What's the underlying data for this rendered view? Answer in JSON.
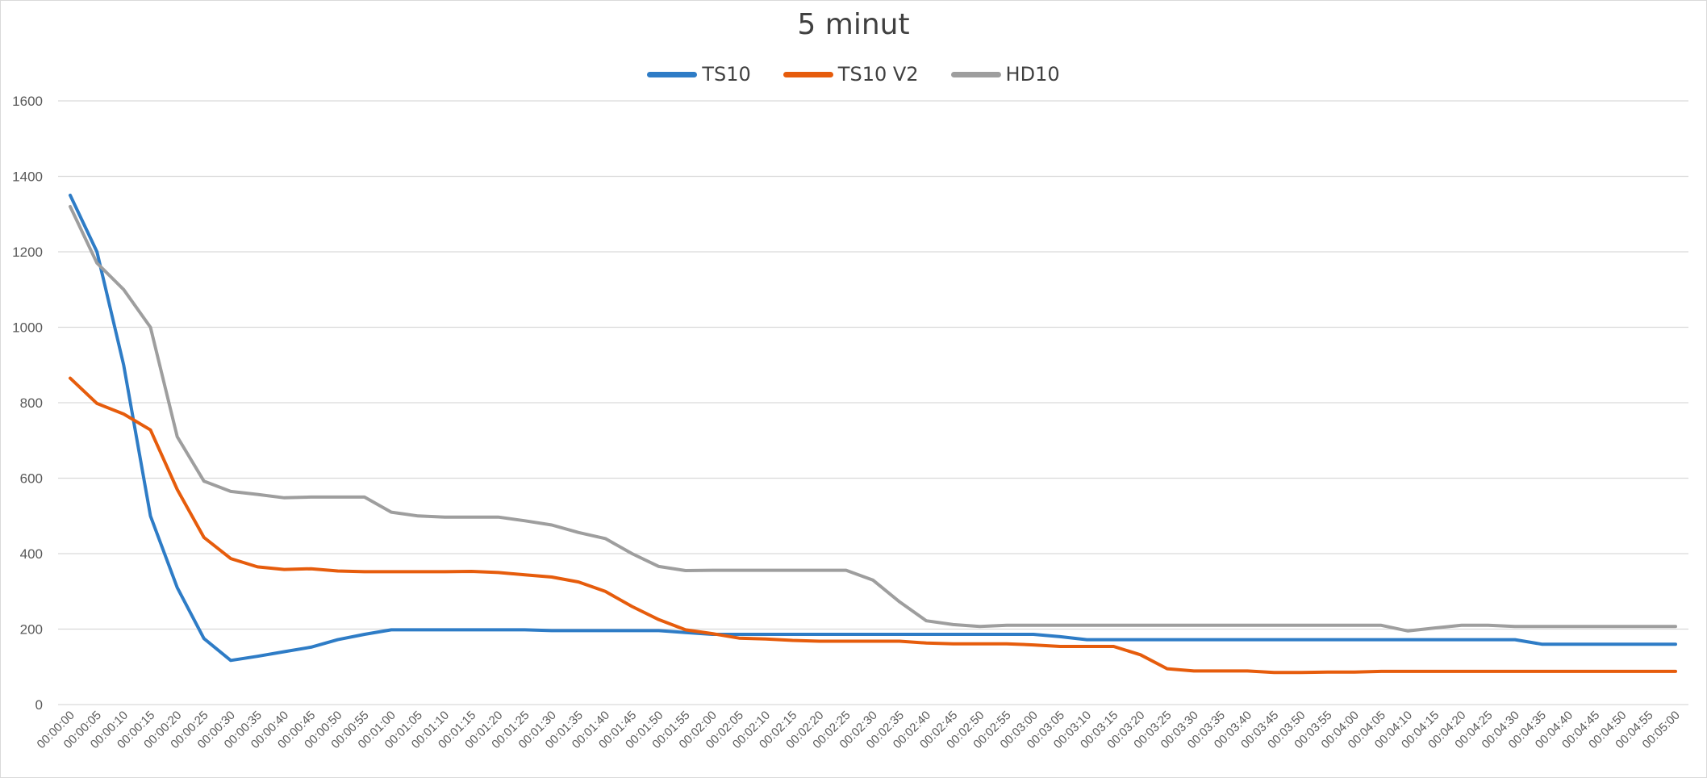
{
  "chart_data": {
    "type": "line",
    "title": "5 minut",
    "xlabel": "",
    "ylabel": "",
    "ylim": [
      0,
      1600
    ],
    "yticks": [
      0,
      200,
      400,
      600,
      800,
      1000,
      1200,
      1400,
      1600
    ],
    "grid": true,
    "legend_position": "top",
    "categories": [
      "00:00:00",
      "00:00:05",
      "00:00:10",
      "00:00:15",
      "00:00:20",
      "00:00:25",
      "00:00:30",
      "00:00:35",
      "00:00:40",
      "00:00:45",
      "00:00:50",
      "00:00:55",
      "00:01:00",
      "00:01:05",
      "00:01:10",
      "00:01:15",
      "00:01:20",
      "00:01:25",
      "00:01:30",
      "00:01:35",
      "00:01:40",
      "00:01:45",
      "00:01:50",
      "00:01:55",
      "00:02:00",
      "00:02:05",
      "00:02:10",
      "00:02:15",
      "00:02:20",
      "00:02:25",
      "00:02:30",
      "00:02:35",
      "00:02:40",
      "00:02:45",
      "00:02:50",
      "00:02:55",
      "00:03:00",
      "00:03:05",
      "00:03:10",
      "00:03:15",
      "00:03:20",
      "00:03:25",
      "00:03:30",
      "00:03:35",
      "00:03:40",
      "00:03:45",
      "00:03:50",
      "00:03:55",
      "00:04:00",
      "00:04:05",
      "00:04:10",
      "00:04:15",
      "00:04:20",
      "00:04:25",
      "00:04:30",
      "00:04:35",
      "00:04:40",
      "00:04:45",
      "00:04:50",
      "00:04:55",
      "00:05:00"
    ],
    "series": [
      {
        "name": "TS10",
        "color": "#2e7cc6",
        "values": [
          1350,
          1200,
          900,
          500,
          310,
          175,
          117,
          128,
          140,
          152,
          172,
          186,
          198,
          198,
          198,
          198,
          198,
          198,
          196,
          196,
          196,
          196,
          196,
          191,
          186,
          186,
          186,
          186,
          186,
          186,
          186,
          186,
          186,
          186,
          186,
          186,
          186,
          180,
          172,
          172,
          172,
          172,
          172,
          172,
          172,
          172,
          172,
          172,
          172,
          172,
          172,
          172,
          172,
          172,
          172,
          160,
          160,
          160,
          160,
          160,
          160
        ]
      },
      {
        "name": "TS10 V2",
        "color": "#e65c0c",
        "values": [
          865,
          798,
          770,
          728,
          570,
          443,
          387,
          365,
          358,
          360,
          354,
          352,
          352,
          352,
          352,
          353,
          350,
          344,
          338,
          325,
          300,
          260,
          225,
          198,
          188,
          176,
          174,
          170,
          168,
          168,
          168,
          168,
          163,
          161,
          161,
          161,
          158,
          154,
          154,
          154,
          132,
          95,
          89,
          89,
          89,
          85,
          85,
          86,
          86,
          88,
          88,
          88,
          88,
          88,
          88,
          88,
          88,
          88,
          88,
          88,
          88
        ]
      },
      {
        "name": "HD10",
        "color": "#9e9e9e",
        "values": [
          1320,
          1170,
          1100,
          1000,
          710,
          592,
          565,
          557,
          548,
          550,
          550,
          550,
          510,
          500,
          497,
          497,
          497,
          487,
          476,
          456,
          440,
          400,
          366,
          355,
          356,
          356,
          356,
          356,
          356,
          356,
          330,
          272,
          222,
          212,
          207,
          210,
          210,
          210,
          210,
          210,
          210,
          210,
          210,
          210,
          210,
          210,
          210,
          210,
          210,
          210,
          195,
          203,
          210,
          210,
          207,
          207,
          207,
          207,
          207,
          207,
          207
        ]
      }
    ]
  }
}
